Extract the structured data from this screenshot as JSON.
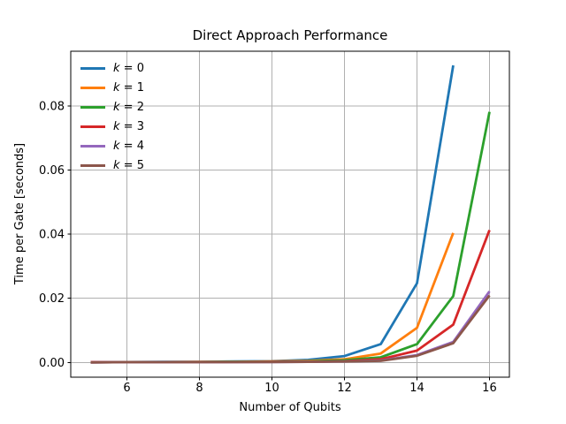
{
  "chart_data": {
    "type": "line",
    "title": "Direct Approach Performance",
    "xlabel": "Number of Qubits",
    "ylabel": "Time per Gate [seconds]",
    "xlim": [
      4.45,
      16.55
    ],
    "ylim": [
      -0.0046,
      0.0971
    ],
    "xticks": [
      6,
      8,
      10,
      12,
      14,
      16
    ],
    "xtick_labels": [
      "6",
      "8",
      "10",
      "12",
      "14",
      "16"
    ],
    "yticks": [
      0.0,
      0.02,
      0.04,
      0.06,
      0.08
    ],
    "ytick_labels": [
      "0.00",
      "0.02",
      "0.04",
      "0.06",
      "0.08"
    ],
    "grid": true,
    "legend_position": "upper left",
    "legend_frame": false,
    "series": [
      {
        "name": "k = 0",
        "color": "#1f77b4",
        "x": [
          5,
          6,
          7,
          8,
          9,
          10,
          11,
          12,
          13,
          14,
          15
        ],
        "y": [
          0.0001,
          0.0001,
          0.0002,
          0.0002,
          0.0003,
          0.0004,
          0.0008,
          0.002,
          0.0057,
          0.0247,
          0.0927
        ]
      },
      {
        "name": "k = 1",
        "color": "#ff7f0e",
        "x": [
          5,
          6,
          7,
          8,
          9,
          10,
          11,
          12,
          13,
          14,
          15
        ],
        "y": [
          0.0001,
          0.0001,
          0.0001,
          0.0002,
          0.0002,
          0.0003,
          0.0005,
          0.001,
          0.0028,
          0.0108,
          0.0404
        ]
      },
      {
        "name": "k = 2",
        "color": "#2ca02c",
        "x": [
          5,
          6,
          7,
          8,
          9,
          10,
          11,
          12,
          13,
          14,
          15,
          16
        ],
        "y": [
          0.0001,
          0.0001,
          0.0001,
          0.0001,
          0.0002,
          0.0002,
          0.0003,
          0.0007,
          0.0016,
          0.0057,
          0.0207,
          0.0782
        ]
      },
      {
        "name": "k = 3",
        "color": "#d62728",
        "x": [
          5,
          6,
          7,
          8,
          9,
          10,
          11,
          12,
          13,
          14,
          15,
          16
        ],
        "y": [
          0.0001,
          0.0001,
          0.0001,
          0.0001,
          0.0001,
          0.0002,
          0.0002,
          0.0004,
          0.001,
          0.0037,
          0.0118,
          0.0413
        ]
      },
      {
        "name": "k = 4",
        "color": "#9467bd",
        "x": [
          5,
          6,
          7,
          8,
          9,
          10,
          11,
          12,
          13,
          14,
          15,
          16
        ],
        "y": [
          0.0,
          0.0001,
          0.0001,
          0.0001,
          0.0001,
          0.0001,
          0.0002,
          0.0003,
          0.0006,
          0.0023,
          0.0064,
          0.0222
        ]
      },
      {
        "name": "k = 5",
        "color": "#8c564b",
        "x": [
          5,
          6,
          7,
          8,
          9,
          10,
          11,
          12,
          13,
          14,
          15,
          16
        ],
        "y": [
          0.0,
          0.0001,
          0.0001,
          0.0001,
          0.0001,
          0.0001,
          0.0002,
          0.0003,
          0.0005,
          0.0021,
          0.006,
          0.0209
        ]
      }
    ]
  },
  "style": {
    "background": "#ffffff",
    "grid_color": "#b0b0b0",
    "spine_color": "#000000",
    "text_color": "#000000",
    "line_width": 2.8
  }
}
